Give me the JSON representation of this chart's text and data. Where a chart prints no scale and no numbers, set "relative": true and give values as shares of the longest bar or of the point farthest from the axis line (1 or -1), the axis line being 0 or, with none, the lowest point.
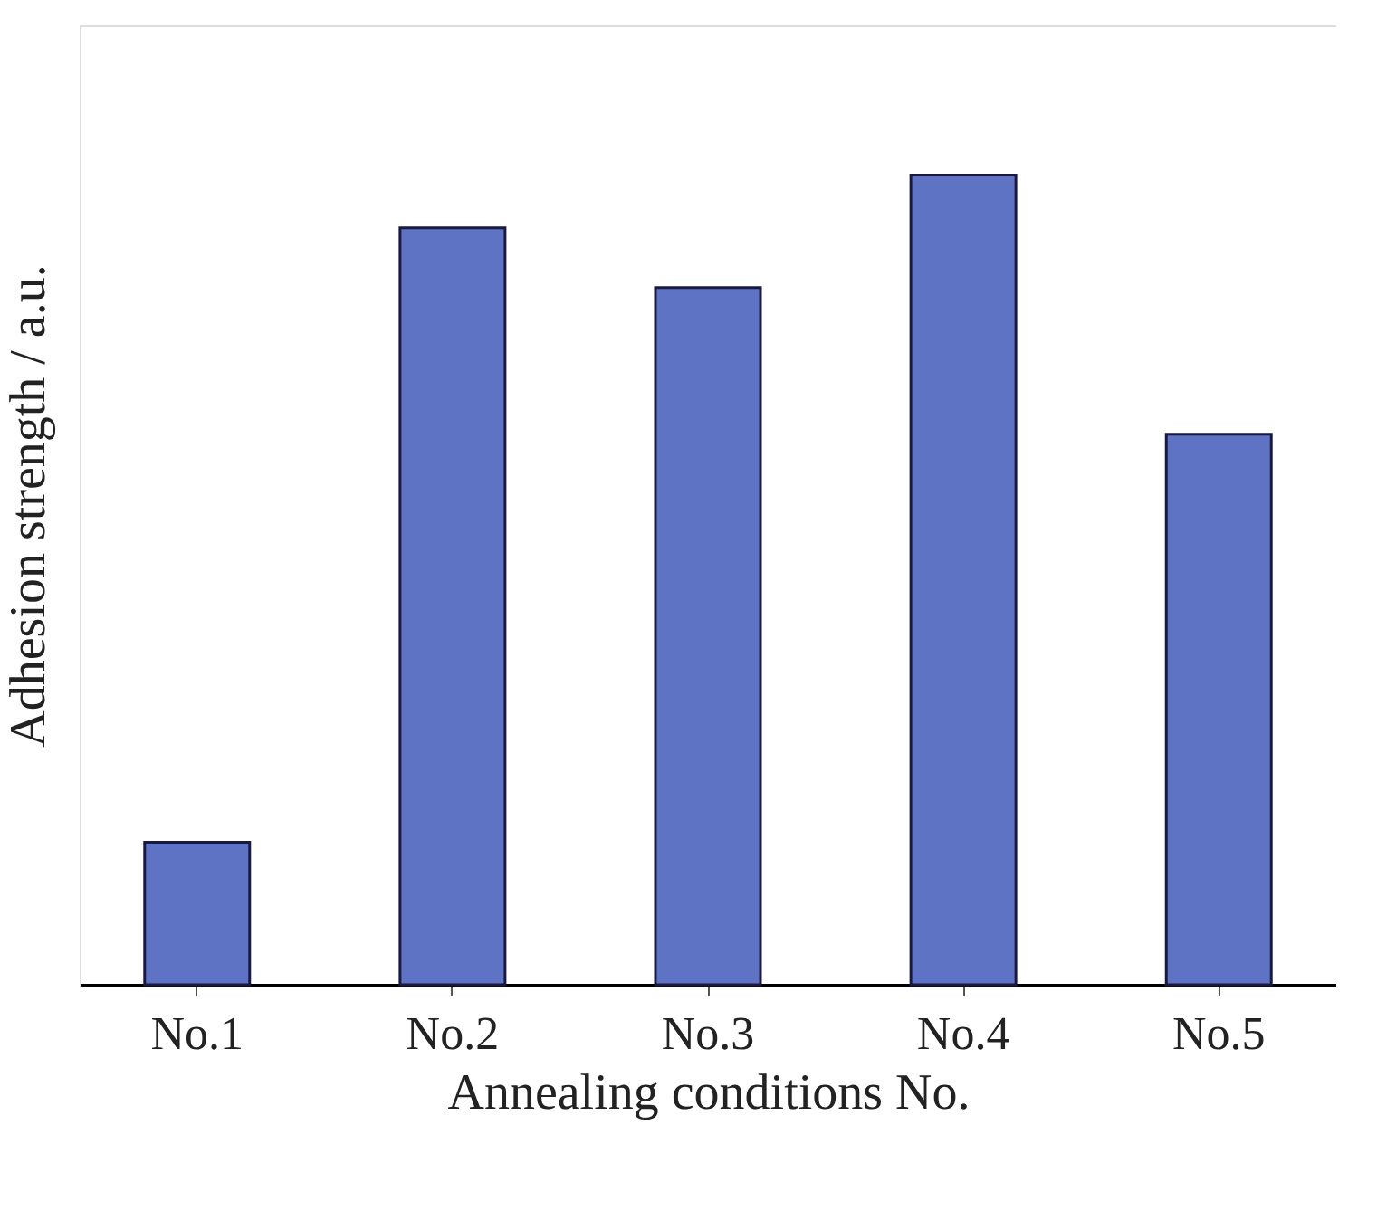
{
  "chart_data": {
    "type": "bar",
    "relative": true,
    "xlabel": "Annealing conditions No.",
    "ylabel": "Adhesion strength / a.u.",
    "categories": [
      "No.1",
      "No.2",
      "No.3",
      "No.4",
      "No.5"
    ],
    "values": [
      0.176,
      0.935,
      0.861,
      1.0,
      0.68
    ],
    "color": "#5f73c4",
    "grid": false
  }
}
